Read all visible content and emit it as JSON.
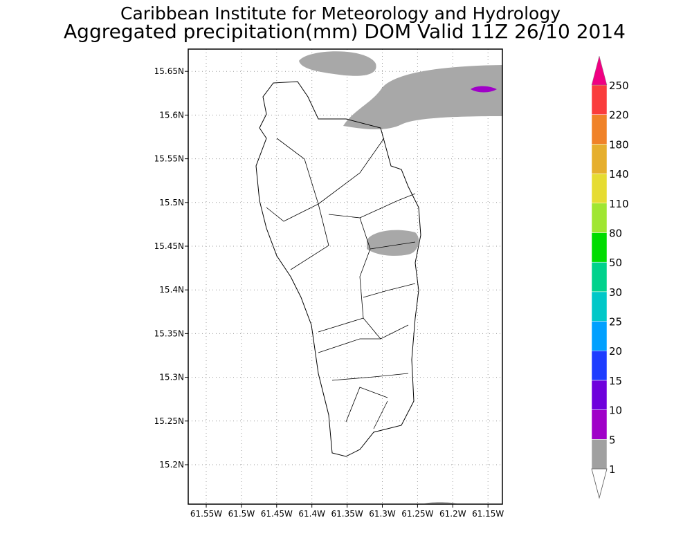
{
  "header": {
    "title": "Caribbean Institute for Meteorology and Hydrology",
    "subtitle": "Aggregated precipitation(mm) DOM Valid 11Z 26/10 2014"
  },
  "map": {
    "x_ticks": [
      "61.55W",
      "61.5W",
      "61.45W",
      "61.4W",
      "61.35W",
      "61.3W",
      "61.25W",
      "61.2W",
      "61.15W"
    ],
    "y_ticks": [
      "15.2N",
      "15.25N",
      "15.3N",
      "15.35N",
      "15.4N",
      "15.45N",
      "15.5N",
      "15.55N",
      "15.6N",
      "15.65N"
    ]
  },
  "colorbar": {
    "levels": [
      1,
      5,
      10,
      15,
      20,
      25,
      30,
      50,
      80,
      110,
      140,
      180,
      220,
      250
    ],
    "colors": [
      "#a0a0a0",
      "#a000c8",
      "#6e00dc",
      "#1e3cff",
      "#00a0ff",
      "#00c8c8",
      "#00d28c",
      "#00dc00",
      "#a0e632",
      "#e6dc32",
      "#e6af2d",
      "#f08228",
      "#fa3c3c"
    ],
    "over_color": "#f00082",
    "under_color": "#ffffff"
  }
}
